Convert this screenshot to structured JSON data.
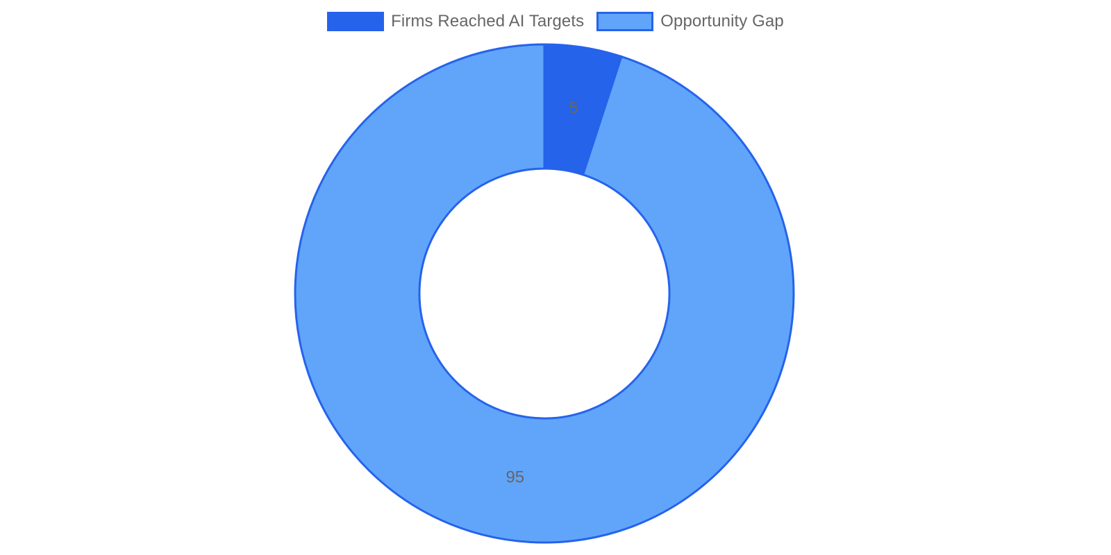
{
  "chart_data": {
    "type": "doughnut",
    "title": "",
    "categories": [
      "Firms Reached AI Targets",
      "Opportunity Gap"
    ],
    "values": [
      5,
      95
    ],
    "colors": [
      "#2563eb",
      "#60a5fa"
    ],
    "border_color": "#2563eb",
    "legend_position": "top",
    "data_labels": [
      "5",
      "95"
    ]
  }
}
